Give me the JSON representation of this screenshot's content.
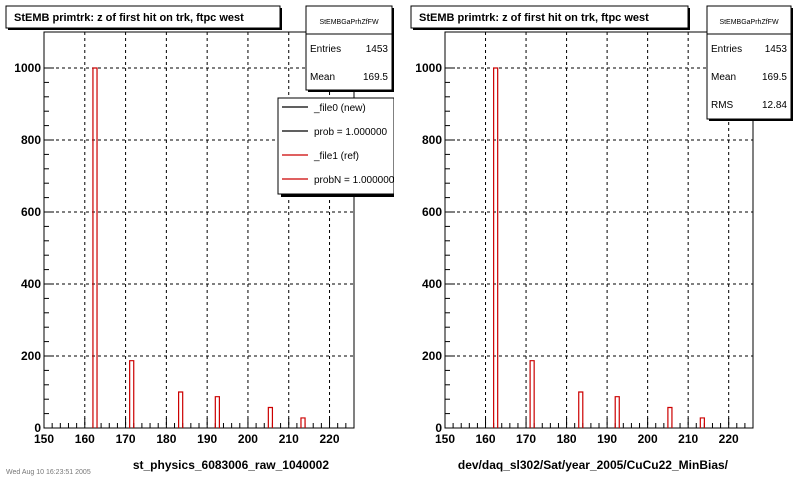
{
  "footer_text": "Wed Aug 10 16:23:51 2005",
  "chart_data": [
    {
      "type": "bar",
      "title": "StEMB primtrk: z of first hit on trk, ftpc west",
      "xlabel": "st_physics_6083006_raw_1040002",
      "ylabel": "",
      "xlim": [
        150,
        226
      ],
      "ylim": [
        0,
        1000
      ],
      "xticks": [
        "150",
        "160",
        "170",
        "180",
        "190",
        "200",
        "210",
        "220"
      ],
      "yticks": [
        "0",
        "200",
        "400",
        "600",
        "800",
        "1000"
      ],
      "grid": true,
      "stats": {
        "header": "StEMBGaPrhZfFW",
        "rows": [
          {
            "label": "Entries",
            "value": "1453"
          },
          {
            "label": "Mean",
            "value": "169.5"
          }
        ]
      },
      "legend": {
        "placement": "top-right",
        "entries": [
          {
            "label": "_file0 (new)",
            "color": "#000000"
          },
          {
            "label": "prob = 1.000000",
            "color": "#000000"
          },
          {
            "label": "_file1 (ref)",
            "color": "#cc0000"
          },
          {
            "label": "probN = 1.000000",
            "color": "#cc0000"
          }
        ]
      },
      "series": [
        {
          "color": "#cc0000",
          "bins": [
            {
              "x": 162.5,
              "y": 1000
            },
            {
              "x": 171.5,
              "y": 187
            },
            {
              "x": 183.5,
              "y": 100
            },
            {
              "x": 192.5,
              "y": 87
            },
            {
              "x": 205.5,
              "y": 57
            },
            {
              "x": 213.5,
              "y": 28
            }
          ]
        }
      ]
    },
    {
      "type": "bar",
      "title": "StEMB primtrk: z of first hit on trk, ftpc west",
      "xlabel": "dev/daq_sl302/Sat/year_2005/CuCu22_MinBias/",
      "ylabel": "",
      "xlim": [
        150,
        226
      ],
      "ylim": [
        0,
        1000
      ],
      "xticks": [
        "150",
        "160",
        "170",
        "180",
        "190",
        "200",
        "210",
        "220"
      ],
      "yticks": [
        "0",
        "200",
        "400",
        "600",
        "800",
        "1000"
      ],
      "grid": true,
      "stats": {
        "header": "StEMBGaPrhZfFW",
        "rows": [
          {
            "label": "Entries",
            "value": "1453"
          },
          {
            "label": "Mean",
            "value": "169.5"
          },
          {
            "label": "RMS",
            "value": "12.84"
          }
        ]
      },
      "series": [
        {
          "color": "#cc0000",
          "bins": [
            {
              "x": 162.5,
              "y": 1000
            },
            {
              "x": 171.5,
              "y": 187
            },
            {
              "x": 183.5,
              "y": 100
            },
            {
              "x": 192.5,
              "y": 87
            },
            {
              "x": 205.5,
              "y": 57
            },
            {
              "x": 213.5,
              "y": 28
            }
          ]
        }
      ]
    }
  ]
}
